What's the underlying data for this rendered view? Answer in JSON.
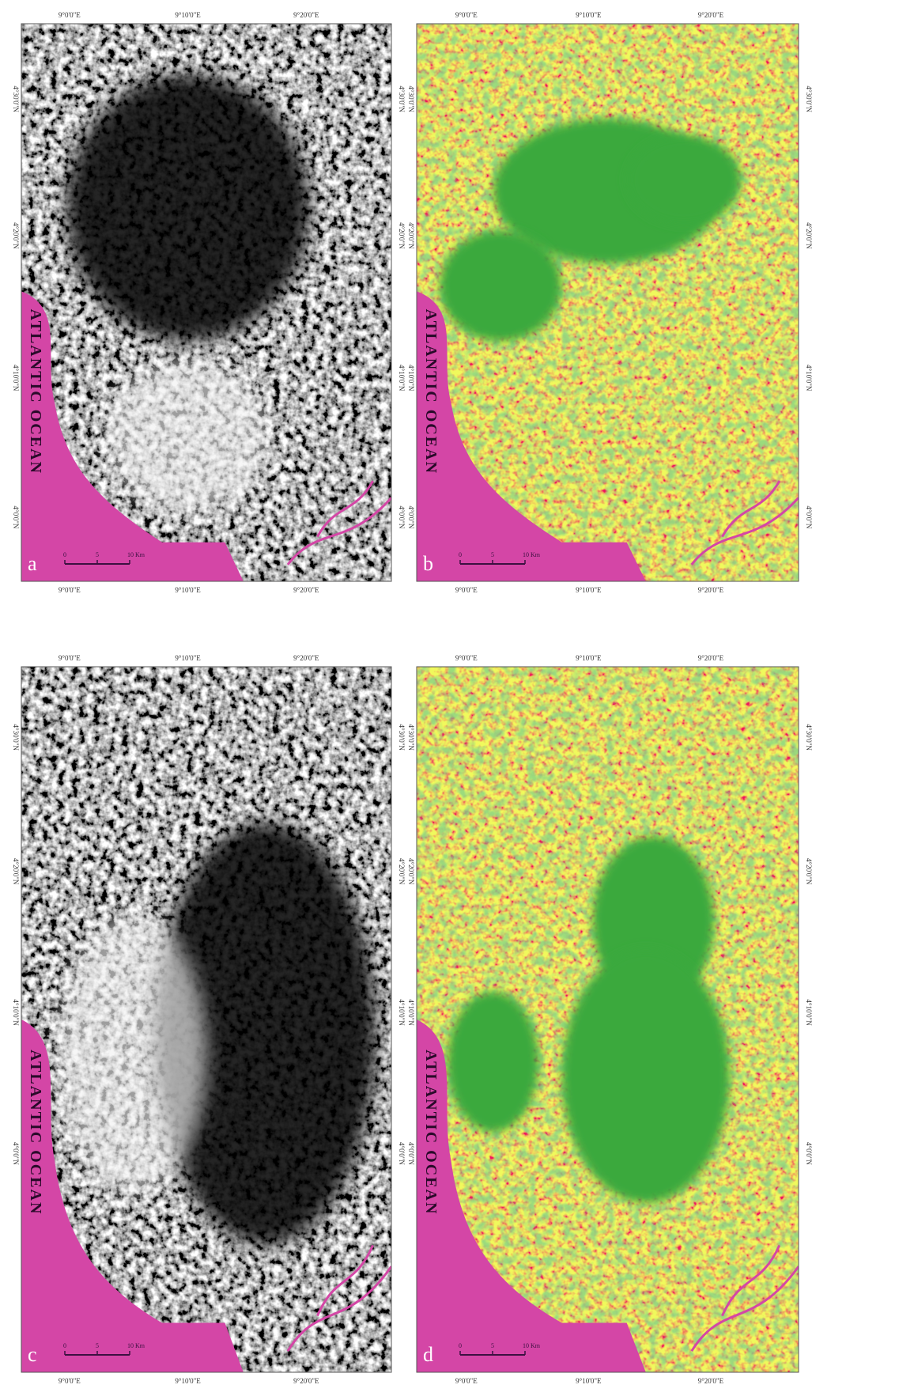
{
  "panels": [
    "a",
    "b",
    "c",
    "d"
  ],
  "x_labels": [
    "9°0'0\"E",
    "9°10'0\"E",
    "9°20'0\"E"
  ],
  "y_labels": [
    "4°30'0\"N",
    "4°20'0\"N",
    "4°10'0\"N",
    "4°0'0\"N"
  ],
  "ocean_label": "ATLANTIC OCEAN",
  "scale_labels": [
    "0",
    "5",
    "10 Km"
  ]
}
